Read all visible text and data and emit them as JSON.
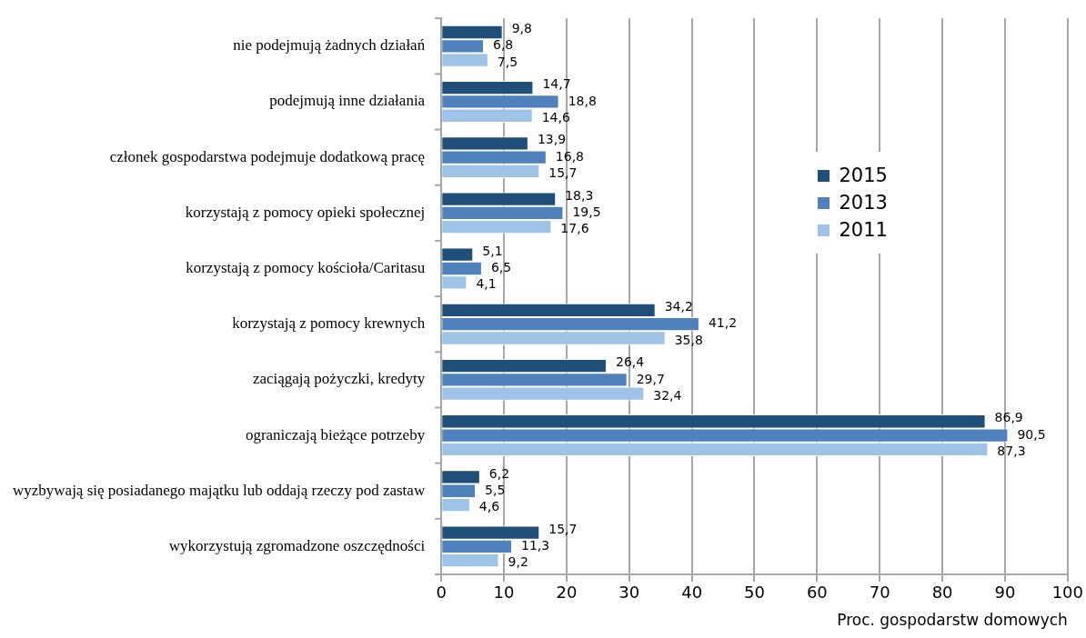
{
  "chart_data": {
    "type": "bar",
    "orientation": "horizontal",
    "xlabel": "Proc. gospodarstw domowych",
    "categories": [
      "nie podejmują żadnych działań",
      "podejmują inne działania",
      "członek gospodarstwa podejmuje dodatkową pracę",
      "korzystają z pomocy opieki społecznej",
      "korzystają z pomocy kościoła/Caritasu",
      "korzystają z pomocy krewnych",
      "zaciągają pożyczki, kredyty",
      "ograniczają bieżące potrzeby",
      "wyzbywają się posiadanego majątku lub oddają rzeczy pod zastaw",
      "wykorzystują zgromadzone oszczędności"
    ],
    "series": [
      {
        "name": "2015",
        "color": "#1f4e79",
        "values": [
          9.8,
          14.7,
          13.9,
          18.3,
          5.1,
          34.2,
          26.4,
          86.9,
          6.2,
          15.7
        ],
        "value_labels": [
          "9,8",
          "14,7",
          "13,9",
          "18,3",
          "5,1",
          "34,2",
          "26,4",
          "86,9",
          "6,2",
          "15,7"
        ]
      },
      {
        "name": "2013",
        "color": "#4f81bd",
        "values": [
          6.8,
          18.8,
          16.8,
          19.5,
          6.5,
          41.2,
          29.7,
          90.5,
          5.5,
          11.3
        ],
        "value_labels": [
          "6,8",
          "18,8",
          "16,8",
          "19,5",
          "6,5",
          "41,2",
          "29,7",
          "90,5",
          "5,5",
          "11,3"
        ]
      },
      {
        "name": "2011",
        "color": "#9dc3e6",
        "values": [
          7.5,
          14.6,
          15.7,
          17.6,
          4.1,
          35.8,
          32.4,
          87.3,
          4.6,
          9.2
        ],
        "value_labels": [
          "7,5",
          "14,6",
          "15,7",
          "17,6",
          "4,1",
          "35,8",
          "32,4",
          "87,3",
          "4,6",
          "9,2"
        ]
      }
    ],
    "xlim": [
      0,
      100
    ],
    "xticks": [
      0,
      10,
      20,
      30,
      40,
      50,
      60,
      70,
      80,
      90,
      100
    ],
    "grid": "x",
    "legend": "right"
  }
}
